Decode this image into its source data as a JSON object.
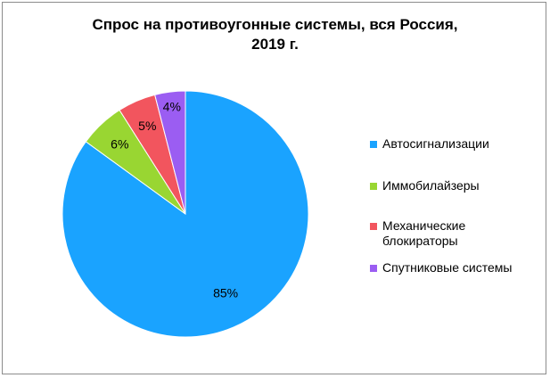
{
  "chart_data": {
    "type": "pie",
    "title_lines": [
      "Спрос на противоугонные системы, вся Россия,",
      "2019 г."
    ],
    "slices": [
      {
        "label": "Автосигнализации",
        "value": 85,
        "display": "85%",
        "color": "#1AA3FF"
      },
      {
        "label": "Иммобилайзеры",
        "value": 6,
        "display": "6%",
        "color": "#99D632"
      },
      {
        "label": "Механические блокираторы",
        "label_lines": [
          "Механические",
          "блокираторы"
        ],
        "value": 5,
        "display": "5%",
        "color": "#F2555E"
      },
      {
        "label": "Спутниковые системы",
        "value": 4,
        "display": "4%",
        "color": "#9B5DF2"
      }
    ],
    "legend_position": "right"
  }
}
